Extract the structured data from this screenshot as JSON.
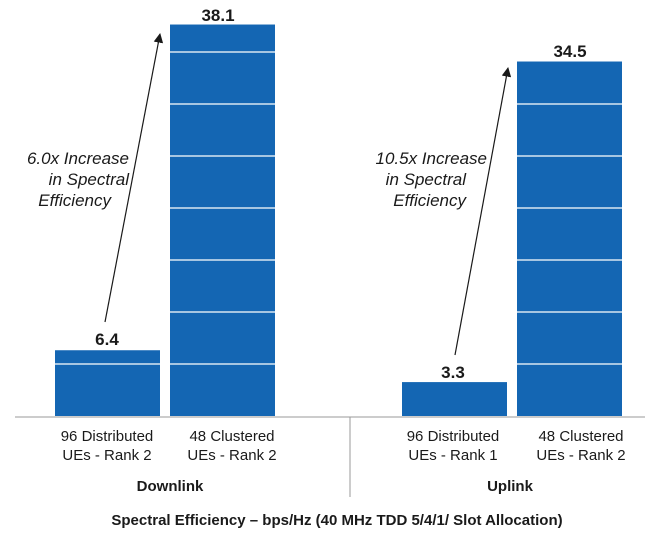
{
  "chart_data": {
    "type": "bar",
    "title": "Spectral Efficiency – bps/Hz (40 MHz TDD  5/4/1/ Slot Allocation)",
    "ylim": [
      0,
      40
    ],
    "grid": false,
    "bar_color": "#1466b3",
    "groups": [
      {
        "name": "Downlink",
        "categories": [
          [
            "96 Distributed",
            "UEs - Rank 2"
          ],
          [
            "48 Clustered",
            "UEs - Rank 2"
          ]
        ],
        "values": [
          6.4,
          38.1
        ],
        "value_labels": [
          "6.4",
          "38.1"
        ],
        "annotation": [
          "6.0x Increase",
          "in Spectral",
          "Efficiency"
        ]
      },
      {
        "name": "Uplink",
        "categories": [
          [
            "96 Distributed",
            "UEs - Rank 1"
          ],
          [
            "48 Clustered",
            "UEs - Rank 2"
          ]
        ],
        "values": [
          3.3,
          34.5
        ],
        "value_labels": [
          "3.3",
          "34.5"
        ],
        "annotation": [
          "10.5x Increase",
          "in Spectral",
          "Efficiency"
        ]
      }
    ]
  }
}
